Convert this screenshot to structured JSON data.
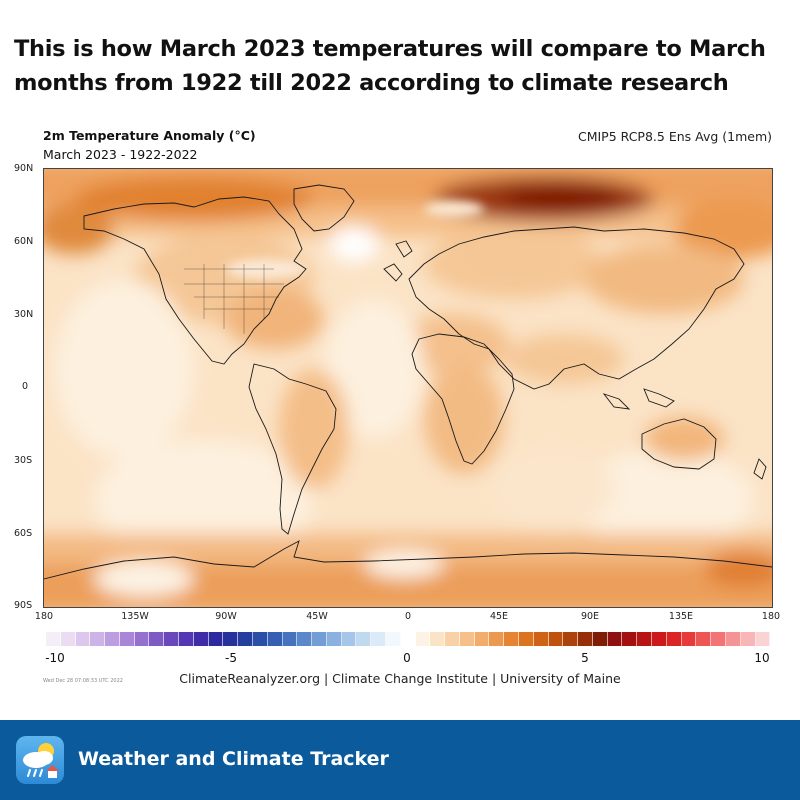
{
  "headline": {
    "line1": "This is how March 2023 temperatures will compare to March",
    "line2": "months from 1922 till 2022 according to climate research"
  },
  "map": {
    "title": "2m Temperature Anomaly (°C)",
    "period": "March 2023 - 1922-2022",
    "model": "CMIP5 RCP8.5 Ens Avg (1mem)",
    "lat_labels": [
      "90N",
      "60N",
      "30N",
      "0",
      "30S",
      "60S",
      "90S"
    ],
    "lon_labels": [
      "180",
      "135W",
      "90W",
      "45W",
      "0",
      "45E",
      "90E",
      "135E",
      "180"
    ]
  },
  "colorbar": {
    "ticks": [
      "-10",
      "-5",
      "0",
      "5",
      "10"
    ],
    "colors": [
      "#f4eef8",
      "#eadcf2",
      "#dcc8ec",
      "#cdb4e6",
      "#bc9ee0",
      "#aa86d8",
      "#9570cf",
      "#7e5ac4",
      "#6a48bb",
      "#5438b3",
      "#3f2ca8",
      "#2c2a9e",
      "#26319c",
      "#243d9f",
      "#2a4fa8",
      "#365fb3",
      "#4673be",
      "#5a88ca",
      "#729dd5",
      "#8bb2df",
      "#a5c6e8",
      "#c0d9f0",
      "#dbeaf7",
      "#f3f8fc",
      "#ffffff",
      "#fdf3e4",
      "#fbe3c6",
      "#f8d2a6",
      "#f5c08a",
      "#f2ad6d",
      "#eb9850",
      "#e58433",
      "#dc731f",
      "#cf6214",
      "#c0520f",
      "#ac420c",
      "#962f09",
      "#7f1c06",
      "#8e1010",
      "#a41010",
      "#b81414",
      "#cc1a1a",
      "#dc2424",
      "#e73a3a",
      "#ee5656",
      "#f27474",
      "#f59494",
      "#f8b6b6",
      "#fad4d4"
    ],
    "accent_warm": "#e58433",
    "accent_cold": "#2c2a9e"
  },
  "credit": "ClimateReanalyzer.org | Climate Change Institute | University of Maine",
  "stamp": "Wed Dec 28 07:08:33 UTC 2022",
  "footer": {
    "app_name": "Weather and Climate Tracker",
    "bg_color": "#0b5a9c",
    "icon": "weather-cloud-icon"
  }
}
